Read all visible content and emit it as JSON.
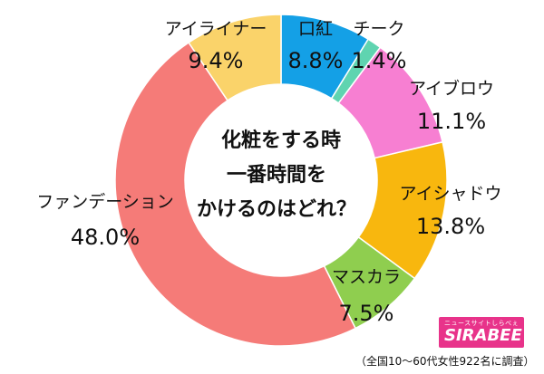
{
  "chart_data": {
    "type": "pie",
    "title": "化粧をする時一番時間をかけるのはどれ？",
    "title_lines": [
      "化粧をする時",
      "一番時間を",
      "かけるのはどれ？"
    ],
    "categories": [
      "口紅",
      "チーク",
      "アイブロウ",
      "アイシャドウ",
      "マスカラ",
      "ファンデーション",
      "アイライナー"
    ],
    "values": [
      8.8,
      1.4,
      11.1,
      13.8,
      7.5,
      48.0,
      9.4
    ],
    "value_labels": [
      "8.8%",
      "1.4%",
      "11.1%",
      "13.8%",
      "7.5%",
      "48.0%",
      "9.4%"
    ],
    "colors": [
      "#14a0e6",
      "#5fd4b0",
      "#f77fd2",
      "#f8b70e",
      "#8fce4f",
      "#f57b78",
      "#fad36a"
    ],
    "donut": true
  },
  "brand": {
    "logo_tagline": "ニュースサイトしらべぇ",
    "logo_name": "SIRABEE",
    "logo_color": "#e8338a"
  },
  "footnote": "（全国10〜60代女性922名に調査）"
}
